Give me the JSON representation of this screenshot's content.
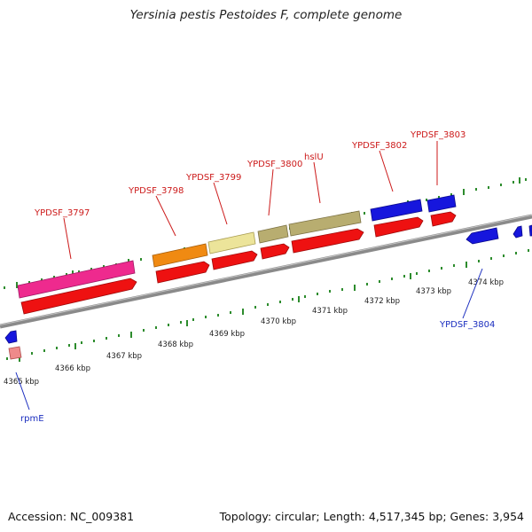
{
  "header": {
    "title": "Yersinia pestis Pestoides F, complete genome"
  },
  "footer": {
    "accession": "Accession: NC_009381",
    "summary": "Topology: circular; Length: 4,517,345 bp; Genes: 3,954"
  },
  "genes": {
    "YPDSF_3797": "YPDSF_3797",
    "YPDSF_3798": "YPDSF_3798",
    "YPDSF_3799": "YPDSF_3799",
    "YPDSF_3800": "YPDSF_3800",
    "hslU": "hslU",
    "YPDSF_3802": "YPDSF_3802",
    "YPDSF_3803": "YPDSF_3803",
    "YPDSF_3804": "YPDSF_3804",
    "rpmE": "rpmE"
  },
  "scale": {
    "ticks": [
      "4365 kbp",
      "4366 kbp",
      "4367 kbp",
      "4368 kbp",
      "4369 kbp",
      "4370 kbp",
      "4371 kbp",
      "4372 kbp",
      "4373 kbp",
      "4374 kbp"
    ]
  },
  "colors": {
    "backbone": "#8a8a8a",
    "cds": "#ee1111",
    "magenta_feature": "#ee2a8e",
    "orange_feature": "#f08a12",
    "yellow_feature": "#ece49a",
    "olive_feature": "#b8ad70",
    "blue_feature": "#1616dd",
    "pink_feature": "#ee8a8a",
    "tick_green": "#2d8c2d",
    "label_red": "#cc1a1a",
    "label_blue": "#1a2dbf"
  }
}
